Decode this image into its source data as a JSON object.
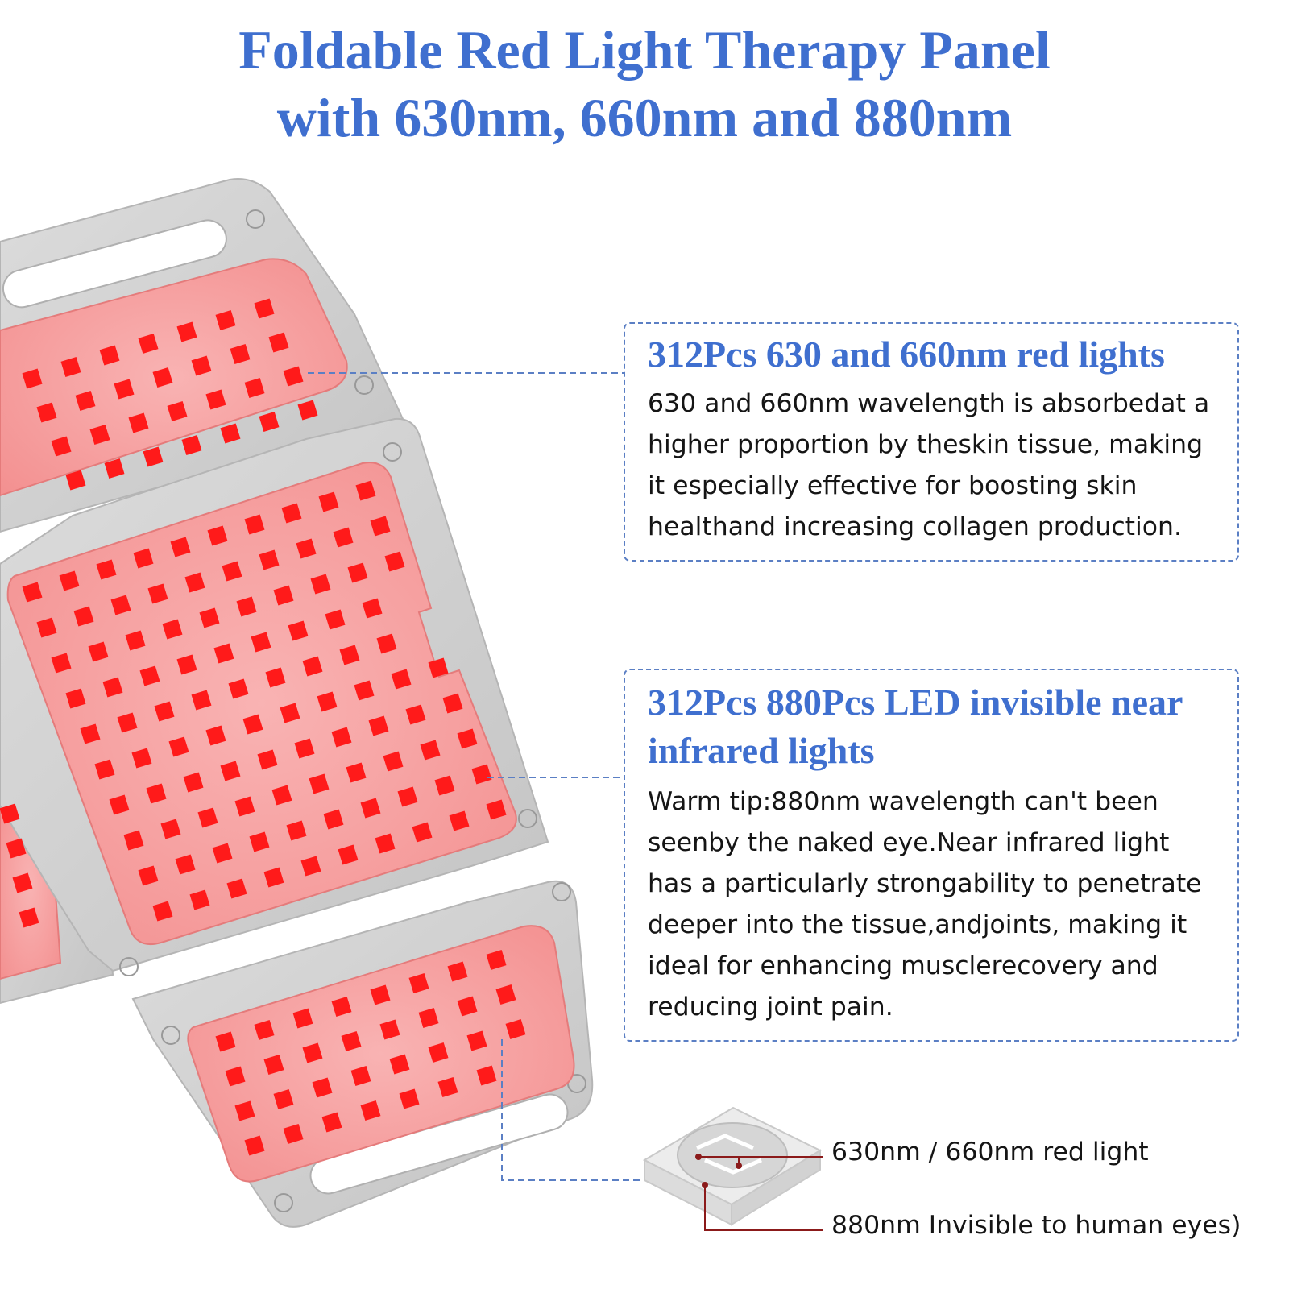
{
  "title": {
    "line1": "Foldable Red Light Therapy Panel",
    "line2": "with 630nm, 660nm and 880nm"
  },
  "colors": {
    "title_blue": "#3f6fcf",
    "panel_gray": "#cfcfcf",
    "pad_pink": "#f7a0a0",
    "led_red": "#ff1a1a",
    "chip_line": "#8b1a1a"
  },
  "red_lights": {
    "heading": "312Pcs 630 and 660nm red lights",
    "body": [
      "630 and 660nm wavelength is absorbedat a",
      "higher proportion by theskin tissue, making",
      "it especially effective for boosting skin",
      "healthand increasing collagen production."
    ]
  },
  "infrared_lights": {
    "heading": [
      "312Pcs 880Pcs LED invisible near",
      "infrared lights"
    ],
    "body": [
      "Warm tip:880nm wavelength can't been",
      "seenby the naked eye.Near infrared light",
      "has a particularly strongability to penetrate",
      "deeper into the tissue,andjoints, making it",
      "ideal for enhancing musclerecovery and",
      "reducing joint pain."
    ]
  },
  "chip_legend": {
    "red": "630nm / 660nm red light",
    "infrared": "880nm Invisible to human eyes)"
  }
}
